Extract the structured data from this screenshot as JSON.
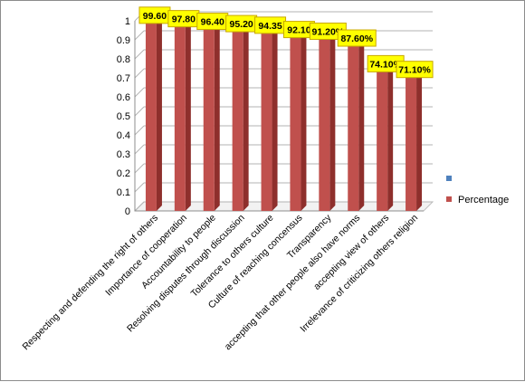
{
  "chart_data": {
    "type": "bar",
    "categories": [
      "Respecting and defending the right of others",
      "Importance of cooperation",
      "Accountability to people",
      "Resolving disputes through discussion",
      "Tolerance to others culture",
      "Culture of reaching concensus",
      "Transparency",
      "accepting that other people also have norms",
      "accepting view of others",
      "Irrelevance of criticizing others religion"
    ],
    "series": [
      {
        "name": "Percentage",
        "values": [
          0.996,
          0.978,
          0.964,
          0.952,
          0.9435,
          0.921,
          0.912,
          0.876,
          0.741,
          0.711
        ],
        "data_labels": [
          "99.60",
          "97.80",
          "96.40",
          "95.20",
          "94.35",
          "92.10",
          "91.20%",
          "87.60%",
          "74.10%",
          "71.10%"
        ]
      }
    ],
    "empty_series_legend": "",
    "ylim": [
      0,
      1
    ],
    "y_ticks": [
      "0",
      "0.1",
      "0.2",
      "0.3",
      "0.4",
      "0.5",
      "0.6",
      "0.7",
      "0.8",
      "0.9",
      "1"
    ],
    "grid": true,
    "legend_position": "right",
    "colors": {
      "bar": "#c0504d",
      "bar_dark": "#8e2f2c",
      "label_bg": "#ffff00",
      "label_border": "#c8a800",
      "legend_blue": "#4f81bd",
      "grid": "#b3b3b3"
    }
  }
}
